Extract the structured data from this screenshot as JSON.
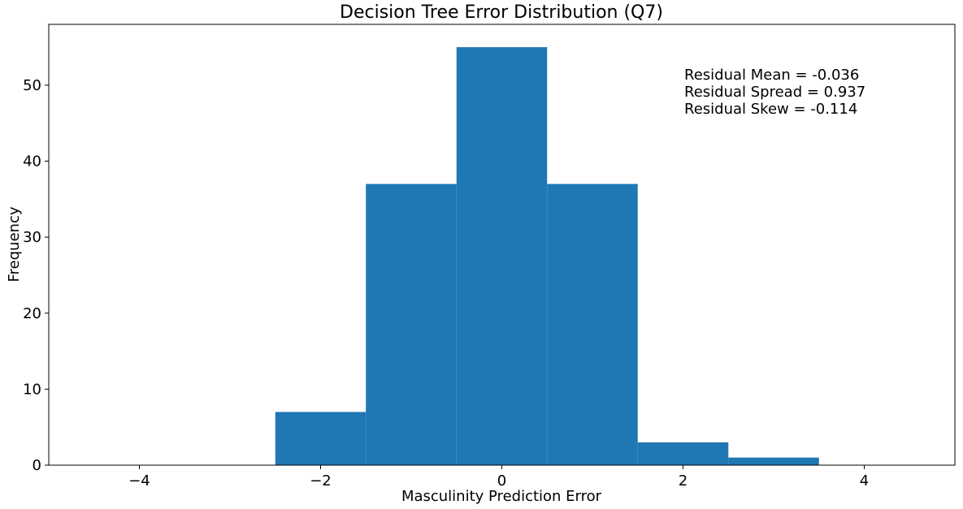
{
  "chart_data": {
    "type": "histogram",
    "title": "Decision Tree Error Distribution (Q7)",
    "xlabel": "Masculinity Prediction Error",
    "ylabel": "Frequency",
    "xlim": [
      -5,
      5
    ],
    "ylim": [
      0,
      58
    ],
    "xticks": [
      -4,
      -2,
      0,
      2,
      4
    ],
    "xtick_labels": [
      "−4",
      "−2",
      "0",
      "2",
      "4"
    ],
    "yticks": [
      0,
      10,
      20,
      30,
      40,
      50
    ],
    "ytick_labels": [
      "0",
      "10",
      "20",
      "30",
      "40",
      "50"
    ],
    "bins": [
      {
        "x0": -2.5,
        "x1": -1.5,
        "count": 7
      },
      {
        "x0": -1.5,
        "x1": -0.5,
        "count": 37
      },
      {
        "x0": -0.5,
        "x1": 0.5,
        "count": 55
      },
      {
        "x0": 0.5,
        "x1": 1.5,
        "count": 37
      },
      {
        "x0": 1.5,
        "x1": 2.5,
        "count": 3
      },
      {
        "x0": 2.5,
        "x1": 3.5,
        "count": 1
      }
    ],
    "bar_color": "#1f77b4",
    "grid": false,
    "annotation": [
      "Residual Mean = -0.036",
      "Residual Spread = 0.937",
      "Residual Skew = -0.114"
    ]
  }
}
